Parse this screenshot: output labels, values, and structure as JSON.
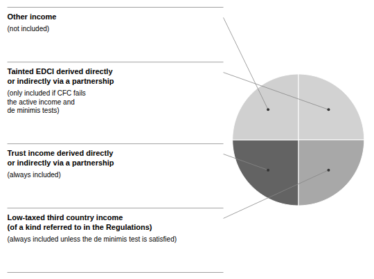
{
  "chart_data": {
    "type": "pie",
    "categories": [
      "Tainted EDCI derived directly\nor indirectly via a partnership",
      "Low-taxed third country income\n(of a kind referred to in the Regulations)",
      "Trust income derived directly\nor indirectly via a partnership",
      "Other income"
    ],
    "values": [
      0.25,
      0.25,
      0.25,
      0.25
    ],
    "colors": [
      "#d2d2d2",
      "#a8a8a8",
      "#636363",
      "#d0d0d0"
    ],
    "annotations": [
      "(only included if CFC fails\nthe active income and\nde minimis tests)",
      "(always included unless the de minimis test is satisfied)",
      "(always included)",
      "(not included)"
    ]
  }
}
